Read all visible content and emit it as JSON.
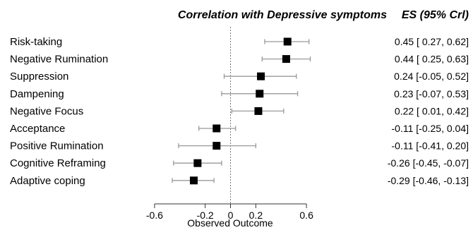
{
  "chart_data": {
    "type": "forest",
    "title": "Correlation with Depressive symptoms",
    "es_header": "ES (95% Crl)",
    "xlabel": "Observed Outcome",
    "xlim": [
      -0.8,
      0.8
    ],
    "xticks": [
      -0.6,
      -0.2,
      0,
      0.2,
      0.6
    ],
    "xtick_labels": [
      "-0.6",
      "-0.2",
      "0",
      "0.2",
      "0.6"
    ],
    "reference_line": 0,
    "rows": [
      {
        "label": "Risk-taking",
        "es": 0.45,
        "lo": 0.27,
        "hi": 0.62,
        "text": "0.45 [ 0.27,  0.62]"
      },
      {
        "label": "Negative Rumination",
        "es": 0.44,
        "lo": 0.25,
        "hi": 0.63,
        "text": "0.44 [ 0.25,  0.63]"
      },
      {
        "label": "Suppression",
        "es": 0.24,
        "lo": -0.05,
        "hi": 0.52,
        "text": "0.24 [-0.05,  0.52]"
      },
      {
        "label": "Dampening",
        "es": 0.23,
        "lo": -0.07,
        "hi": 0.53,
        "text": "0.23 [-0.07,  0.53]"
      },
      {
        "label": "Negative Focus",
        "es": 0.22,
        "lo": 0.01,
        "hi": 0.42,
        "text": "0.22 [ 0.01,  0.42]"
      },
      {
        "label": "Acceptance",
        "es": -0.11,
        "lo": -0.25,
        "hi": 0.04,
        "text": "-0.11 [-0.25,  0.04]"
      },
      {
        "label": "Positive Rumination",
        "es": -0.11,
        "lo": -0.41,
        "hi": 0.2,
        "text": "-0.11 [-0.41,  0.20]"
      },
      {
        "label": "Cognitive Reframing",
        "es": -0.26,
        "lo": -0.45,
        "hi": -0.07,
        "text": "-0.26 [-0.45, -0.07]"
      },
      {
        "label": "Adaptive coping",
        "es": -0.29,
        "lo": -0.46,
        "hi": -0.13,
        "text": "-0.29 [-0.46, -0.13]"
      }
    ],
    "colors": {
      "marker": "#000000",
      "ci": "#999999",
      "axis": "#333333",
      "reference": "#777777"
    }
  }
}
